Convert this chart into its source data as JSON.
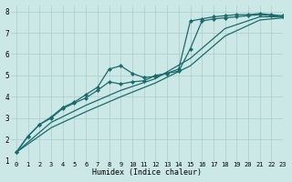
{
  "title": "",
  "xlabel": "Humidex (Indice chaleur)",
  "ylabel": "",
  "bg_color": "#cce8e6",
  "grid_color": "#aaccca",
  "line_color": "#1a6b6b",
  "xlim": [
    -0.5,
    23
  ],
  "ylim": [
    1,
    8.3
  ],
  "xticks": [
    0,
    1,
    2,
    3,
    4,
    5,
    6,
    7,
    8,
    9,
    10,
    11,
    12,
    13,
    14,
    15,
    16,
    17,
    18,
    19,
    20,
    21,
    22,
    23
  ],
  "yticks": [
    1,
    2,
    3,
    4,
    5,
    6,
    7,
    8
  ],
  "lines": [
    {
      "x": [
        0,
        1,
        2,
        3,
        4,
        5,
        6,
        7,
        8,
        9,
        10,
        11,
        12,
        13,
        14,
        15,
        16,
        17,
        18,
        19,
        20,
        21,
        22,
        23
      ],
      "y": [
        1.4,
        2.15,
        2.7,
        3.05,
        3.5,
        3.75,
        4.1,
        4.45,
        5.3,
        5.45,
        5.1,
        4.9,
        4.95,
        5.1,
        5.3,
        7.55,
        7.65,
        7.75,
        7.8,
        7.85,
        7.85,
        7.9,
        7.85,
        7.8
      ],
      "marker": true
    },
    {
      "x": [
        0,
        1,
        2,
        3,
        4,
        5,
        6,
        7,
        8,
        9,
        10,
        11,
        12,
        13,
        14,
        15,
        16,
        17,
        18,
        19,
        20,
        21,
        22,
        23
      ],
      "y": [
        1.4,
        2.15,
        2.7,
        3.0,
        3.45,
        3.7,
        3.95,
        4.3,
        4.7,
        4.6,
        4.7,
        4.75,
        5.0,
        5.1,
        5.2,
        6.25,
        7.55,
        7.65,
        7.7,
        7.75,
        7.8,
        7.85,
        7.8,
        7.75
      ],
      "marker": true
    },
    {
      "x": [
        0,
        3,
        6,
        9,
        12,
        15,
        18,
        21,
        23
      ],
      "y": [
        1.4,
        2.8,
        3.6,
        4.3,
        4.85,
        5.8,
        7.2,
        7.75,
        7.75
      ],
      "marker": false
    },
    {
      "x": [
        0,
        3,
        6,
        9,
        12,
        15,
        18,
        21,
        23
      ],
      "y": [
        1.4,
        2.55,
        3.3,
        4.0,
        4.65,
        5.45,
        6.85,
        7.6,
        7.7
      ],
      "marker": false
    }
  ]
}
